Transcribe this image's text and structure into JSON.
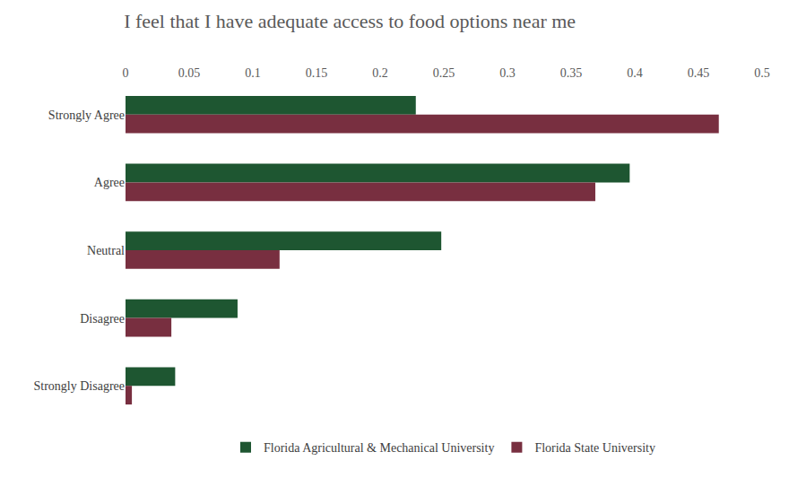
{
  "chart_data": {
    "type": "bar",
    "title": "I feel that I have adequate access to food options near me",
    "orientation": "horizontal",
    "categories": [
      "Strongly Agree",
      "Agree",
      "Neutral",
      "Disagree",
      "Strongly Disagree"
    ],
    "series": [
      {
        "name": "Florida Agricultural & Mechanical University",
        "color": "#1e5631",
        "values": [
          0.228,
          0.396,
          0.248,
          0.088,
          0.039
        ]
      },
      {
        "name": "Florida State University",
        "color": "#782f40",
        "values": [
          0.466,
          0.369,
          0.121,
          0.036,
          0.005
        ]
      }
    ],
    "xlim": [
      0,
      0.5
    ],
    "xticks": [
      0,
      0.05,
      0.1,
      0.15,
      0.2,
      0.25,
      0.3,
      0.35,
      0.4,
      0.45,
      0.5
    ],
    "grid": false,
    "legend": "bottom"
  }
}
